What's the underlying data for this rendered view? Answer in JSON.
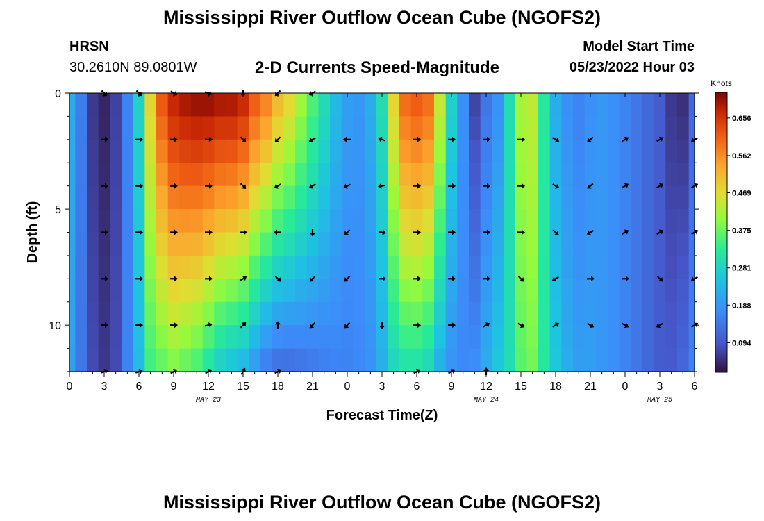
{
  "header": {
    "title": "Mississippi River Outflow Ocean Cube (NGOFS2)",
    "station": "HRSN",
    "coords": "30.2610N  89.0801W",
    "subtitle": "2-D Currents Speed-Magnitude",
    "start_label": "Model Start Time",
    "start_value": "05/23/2022 Hour 03"
  },
  "footer": {
    "title": "Mississippi River Outflow Ocean Cube (NGOFS2)"
  },
  "chart_data": {
    "type": "heatmap",
    "xlabel": "Forecast Time(Z)",
    "ylabel": "Depth (ft)",
    "x_range_hours": [
      0,
      54
    ],
    "y_range_ft": [
      0,
      12
    ],
    "y_inverted": true,
    "x_tick_labels": [
      "0",
      "3",
      "6",
      "9",
      "12",
      "15",
      "18",
      "21",
      "0",
      "3",
      "6",
      "9",
      "12",
      "15",
      "18",
      "21",
      "0",
      "3",
      "6"
    ],
    "y_tick_values": [
      0,
      5,
      10
    ],
    "date_labels": [
      {
        "text": "MAY 23",
        "hour": 12
      },
      {
        "text": "MAY 24",
        "hour": 36
      },
      {
        "text": "MAY 25",
        "hour": 51
      }
    ],
    "colorbar": {
      "title": "Knots",
      "ticks": [
        "0.656",
        "0.562",
        "0.469",
        "0.375",
        "0.281",
        "0.188",
        "0.094"
      ],
      "range": [
        0.02,
        0.72
      ]
    },
    "speed_profile": {
      "hours": [
        0,
        1,
        2,
        3,
        4,
        5,
        6,
        7,
        8,
        9,
        10,
        11,
        12,
        13,
        14,
        15,
        16,
        17,
        18,
        19,
        20,
        21,
        22,
        23,
        24,
        25,
        26,
        27,
        28,
        29,
        30,
        31,
        32,
        33,
        34,
        35,
        36,
        37,
        38,
        39,
        40,
        41,
        42,
        43,
        44,
        45,
        46,
        47,
        48,
        49,
        50,
        51,
        52,
        53,
        54
      ],
      "surface_knots": [
        0.22,
        0.15,
        0.06,
        0.04,
        0.07,
        0.16,
        0.28,
        0.48,
        0.62,
        0.68,
        0.7,
        0.71,
        0.71,
        0.7,
        0.7,
        0.68,
        0.62,
        0.58,
        0.52,
        0.48,
        0.42,
        0.36,
        0.3,
        0.24,
        0.2,
        0.19,
        0.22,
        0.3,
        0.48,
        0.6,
        0.62,
        0.6,
        0.45,
        0.28,
        0.18,
        0.07,
        0.14,
        0.18,
        0.3,
        0.42,
        0.44,
        0.32,
        0.22,
        0.18,
        0.16,
        0.18,
        0.19,
        0.18,
        0.16,
        0.14,
        0.12,
        0.1,
        0.06,
        0.05,
        0.12
      ],
      "bottom_knots": [
        0.2,
        0.14,
        0.08,
        0.06,
        0.08,
        0.16,
        0.24,
        0.34,
        0.36,
        0.38,
        0.36,
        0.34,
        0.3,
        0.26,
        0.24,
        0.22,
        0.18,
        0.14,
        0.12,
        0.12,
        0.13,
        0.14,
        0.15,
        0.16,
        0.16,
        0.17,
        0.18,
        0.22,
        0.28,
        0.3,
        0.3,
        0.28,
        0.22,
        0.18,
        0.17,
        0.18,
        0.22,
        0.26,
        0.3,
        0.36,
        0.38,
        0.32,
        0.26,
        0.22,
        0.2,
        0.2,
        0.19,
        0.18,
        0.16,
        0.14,
        0.12,
        0.1,
        0.1,
        0.12,
        0.16
      ]
    },
    "vectors": {
      "depths_ft": [
        0,
        2,
        4,
        6,
        8,
        10,
        12
      ],
      "hours": [
        3,
        6,
        9,
        12,
        15,
        18,
        21,
        24,
        27,
        30,
        33,
        36,
        39,
        42,
        45,
        48,
        51,
        54
      ],
      "angles_deg": [
        [
          45,
          45,
          30,
          20,
          90,
          135,
          150,
          null,
          null,
          null,
          null,
          null,
          null,
          null,
          null,
          null,
          null,
          null
        ],
        [
          0,
          0,
          0,
          0,
          45,
          135,
          150,
          180,
          200,
          0,
          0,
          0,
          0,
          30,
          140,
          330,
          330,
          150
        ],
        [
          0,
          0,
          0,
          0,
          45,
          150,
          150,
          155,
          170,
          0,
          0,
          0,
          0,
          30,
          140,
          330,
          330,
          330
        ],
        [
          0,
          0,
          0,
          0,
          0,
          180,
          90,
          135,
          10,
          0,
          0,
          0,
          0,
          40,
          150,
          330,
          330,
          330
        ],
        [
          0,
          0,
          0,
          0,
          330,
          45,
          135,
          135,
          0,
          0,
          0,
          0,
          45,
          150,
          0,
          0,
          45,
          150
        ],
        [
          0,
          0,
          0,
          345,
          315,
          270,
          135,
          135,
          90,
          0,
          0,
          330,
          30,
          330,
          30,
          30,
          150,
          330
        ],
        [
          340,
          340,
          330,
          330,
          300,
          330,
          null,
          null,
          null,
          330,
          330,
          270,
          null,
          null,
          null,
          null,
          null,
          null
        ]
      ]
    }
  }
}
